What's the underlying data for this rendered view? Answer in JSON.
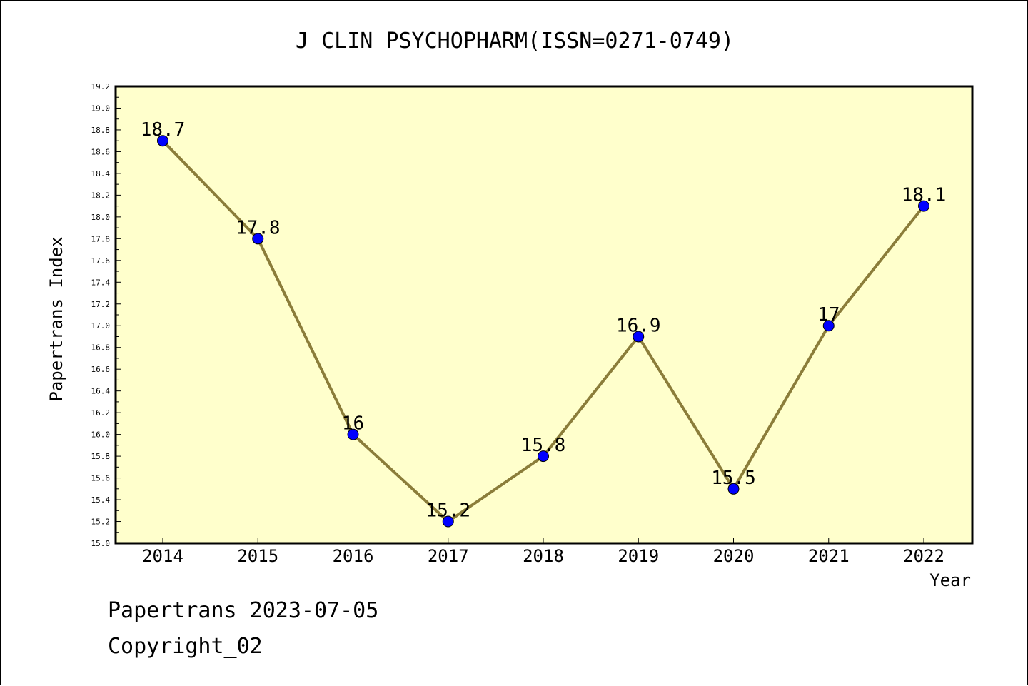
{
  "chart_data": {
    "type": "line",
    "title": "J CLIN PSYCHOPHARM(ISSN=0271-0749)",
    "xlabel": "Year",
    "ylabel": "Papertrans Index",
    "categories": [
      "2014",
      "2015",
      "2016",
      "2017",
      "2018",
      "2019",
      "2020",
      "2021",
      "2022"
    ],
    "series": [
      {
        "values": [
          18.7,
          17.8,
          16.0,
          15.2,
          15.8,
          16.9,
          15.5,
          17.0,
          18.1
        ],
        "labels": [
          "18.7",
          "17.8",
          "16",
          "15.2",
          "15.8",
          "16.9",
          "15.5",
          "17",
          "18.1"
        ]
      }
    ],
    "ylim": [
      15.0,
      19.2
    ],
    "yticks": [
      "15.0",
      "15.2",
      "15.4",
      "15.6",
      "15.8",
      "16.0",
      "16.2",
      "16.4",
      "16.6",
      "16.8",
      "17.0",
      "17.2",
      "17.4",
      "17.6",
      "17.8",
      "18.0",
      "18.2",
      "18.4",
      "18.6",
      "18.8",
      "19.0",
      "19.2"
    ],
    "grid": false,
    "legend": "none"
  },
  "footer": {
    "line1": "Papertrans 2023-07-05",
    "line2": "Copyright_02"
  },
  "colors": {
    "plot_background": "#ffffcc",
    "line": "#8b7d3a",
    "marker": "#0000ff",
    "axis": "#000000"
  }
}
